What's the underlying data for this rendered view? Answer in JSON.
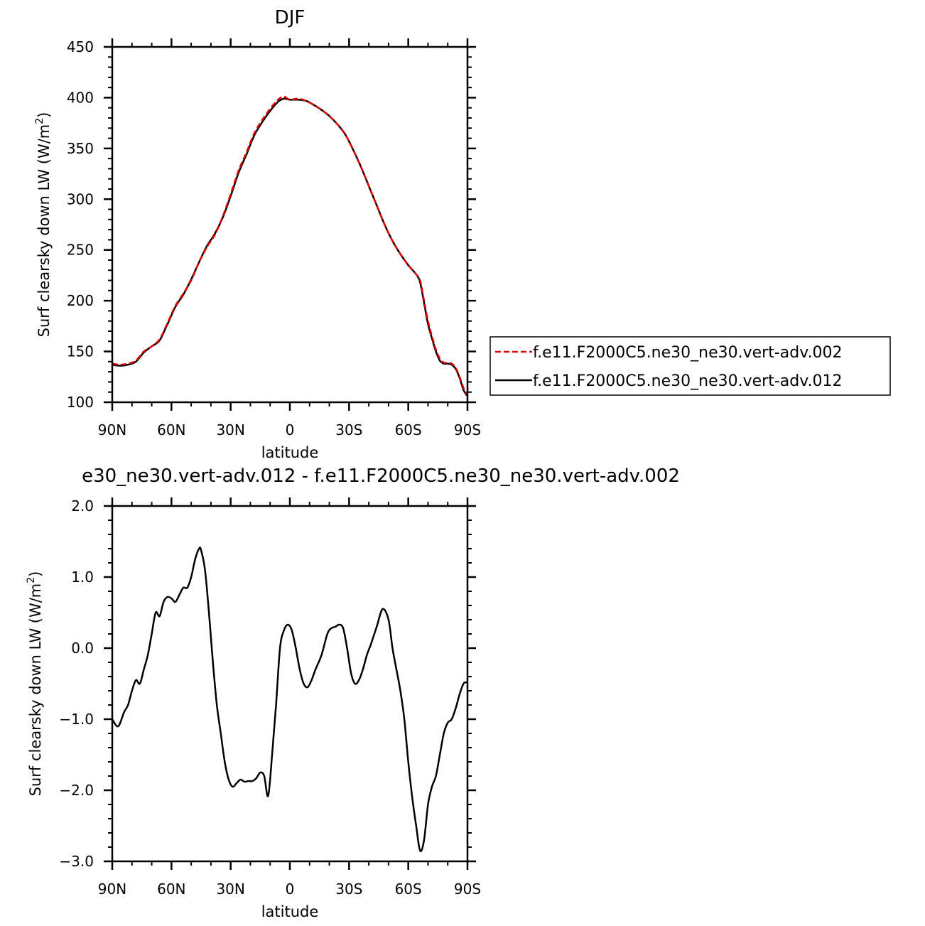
{
  "chart_data": [
    {
      "type": "line",
      "title": "DJF",
      "xlabel": "latitude",
      "ylabel": "Surf clearsky down LW (W/m",
      "ylabel_sup": "2",
      "ylabel_close": ")",
      "xlim": [
        90,
        -90
      ],
      "ylim": [
        100,
        450
      ],
      "yticks": [
        100,
        150,
        200,
        250,
        300,
        350,
        400,
        450
      ],
      "ytick_labels": [
        "100",
        "150",
        "200",
        "250",
        "300",
        "350",
        "400",
        "450"
      ],
      "xticks": [
        90,
        60,
        30,
        0,
        -30,
        -60,
        -90
      ],
      "xtick_labels": [
        "90N",
        "60N",
        "30N",
        "0",
        "30S",
        "60S",
        "90S"
      ],
      "legend_position": "right",
      "series": [
        {
          "name": "f.e11.F2000C5.ne30_ne30.vert-adv.002",
          "color": "#e00000",
          "dash": "dashed",
          "x": [
            90,
            86,
            82,
            78,
            74,
            70,
            66,
            62,
            58,
            54,
            50,
            46,
            42,
            38,
            34,
            30,
            26,
            22,
            18,
            14,
            10,
            6,
            3,
            0,
            -4,
            -8,
            -12,
            -16,
            -20,
            -24,
            -28,
            -32,
            -36,
            -40,
            -44,
            -48,
            -52,
            -56,
            -60,
            -64,
            -66,
            -68,
            -70,
            -72,
            -74,
            -76,
            -78,
            -80,
            -82,
            -84,
            -86,
            -88,
            -90
          ],
          "y": [
            138,
            137,
            138,
            141,
            150,
            155,
            162,
            178,
            195,
            207,
            220,
            238,
            253,
            265,
            283,
            305,
            328,
            346,
            365,
            378,
            389,
            398,
            401,
            398,
            399,
            397,
            393,
            388,
            382,
            374,
            364,
            349,
            332,
            313,
            294,
            275,
            259,
            246,
            235,
            226,
            220,
            200,
            180,
            165,
            152,
            143,
            139,
            139,
            138,
            134,
            125,
            114,
            107
          ]
        },
        {
          "name": "f.e11.F2000C5.ne30_ne30.vert-adv.012",
          "color": "#000000",
          "dash": "solid",
          "x": [
            90,
            86,
            82,
            78,
            74,
            70,
            66,
            62,
            58,
            54,
            50,
            46,
            42,
            38,
            34,
            30,
            26,
            22,
            18,
            14,
            10,
            6,
            3,
            0,
            -4,
            -8,
            -12,
            -16,
            -20,
            -24,
            -28,
            -32,
            -36,
            -40,
            -44,
            -48,
            -52,
            -56,
            -60,
            -64,
            -66,
            -68,
            -70,
            -72,
            -74,
            -76,
            -78,
            -80,
            -82,
            -84,
            -86,
            -88,
            -90
          ],
          "y": [
            137,
            136,
            137,
            140,
            149,
            155,
            161,
            177,
            194,
            206,
            221,
            238,
            254,
            266,
            282,
            303,
            326,
            344,
            363,
            376,
            387,
            396,
            399,
            398,
            398,
            397,
            393,
            388,
            382,
            374,
            364,
            349,
            332,
            313,
            294,
            275,
            259,
            246,
            235,
            226,
            218,
            198,
            177,
            163,
            150,
            141,
            138,
            138,
            137,
            133,
            124,
            112,
            106
          ]
        }
      ]
    },
    {
      "type": "line",
      "title": "e30_ne30.vert-adv.012 - f.e11.F2000C5.ne30_ne30.vert-adv.002",
      "xlabel": "latitude",
      "ylabel": "Surf clearsky down LW (W/m",
      "ylabel_sup": "2",
      "ylabel_close": ")",
      "xlim": [
        90,
        -90
      ],
      "ylim": [
        -3.0,
        2.0
      ],
      "yticks": [
        -3.0,
        -2.0,
        -1.0,
        0.0,
        1.0,
        2.0
      ],
      "ytick_labels": [
        "−3.0",
        "−2.0",
        "−1.0",
        "0.0",
        "1.0",
        "2.0"
      ],
      "xticks": [
        90,
        60,
        30,
        0,
        -30,
        -60,
        -90
      ],
      "xtick_labels": [
        "90N",
        "60N",
        "30N",
        "0",
        "30S",
        "60S",
        "90S"
      ],
      "series": [
        {
          "color": "#000000",
          "dash": "solid",
          "x": [
            90,
            87,
            84,
            82,
            80,
            78,
            76,
            74,
            72,
            70,
            68,
            66,
            64,
            62,
            60,
            58,
            56,
            54,
            52,
            50,
            48,
            46,
            45,
            43,
            41,
            39,
            37,
            35,
            33,
            31,
            29,
            27,
            25,
            23,
            21,
            19,
            17,
            15,
            13,
            11,
            9,
            7,
            5,
            3,
            1,
            -1,
            -3,
            -5,
            -7,
            -9,
            -11,
            -13,
            -16,
            -19,
            -21,
            -23,
            -25,
            -27,
            -29,
            -31,
            -33,
            -35,
            -37,
            -39,
            -41,
            -44,
            -47,
            -50,
            -52,
            -54,
            -56,
            -58,
            -60,
            -62,
            -64,
            -66,
            -68,
            -70,
            -72,
            -74,
            -76,
            -78,
            -80,
            -82,
            -84,
            -86,
            -88,
            -90
          ],
          "y": [
            -1.0,
            -1.1,
            -0.9,
            -0.8,
            -0.6,
            -0.45,
            -0.5,
            -0.3,
            -0.1,
            0.2,
            0.5,
            0.45,
            0.65,
            0.72,
            0.7,
            0.65,
            0.75,
            0.85,
            0.85,
            1.0,
            1.25,
            1.4,
            1.38,
            1.1,
            0.5,
            -0.2,
            -0.8,
            -1.2,
            -1.6,
            -1.85,
            -1.95,
            -1.9,
            -1.85,
            -1.88,
            -1.87,
            -1.87,
            -1.83,
            -1.75,
            -1.8,
            -2.08,
            -1.5,
            -0.8,
            0.0,
            0.25,
            0.33,
            0.25,
            0.0,
            -0.3,
            -0.5,
            -0.55,
            -0.45,
            -0.3,
            -0.1,
            0.2,
            0.28,
            0.3,
            0.33,
            0.28,
            0.0,
            -0.35,
            -0.5,
            -0.45,
            -0.3,
            -0.1,
            0.05,
            0.3,
            0.55,
            0.4,
            0.0,
            -0.3,
            -0.6,
            -1.0,
            -1.6,
            -2.1,
            -2.5,
            -2.85,
            -2.7,
            -2.2,
            -1.95,
            -1.8,
            -1.5,
            -1.2,
            -1.05,
            -1.0,
            -0.85,
            -0.65,
            -0.5,
            -0.48
          ]
        }
      ]
    }
  ]
}
